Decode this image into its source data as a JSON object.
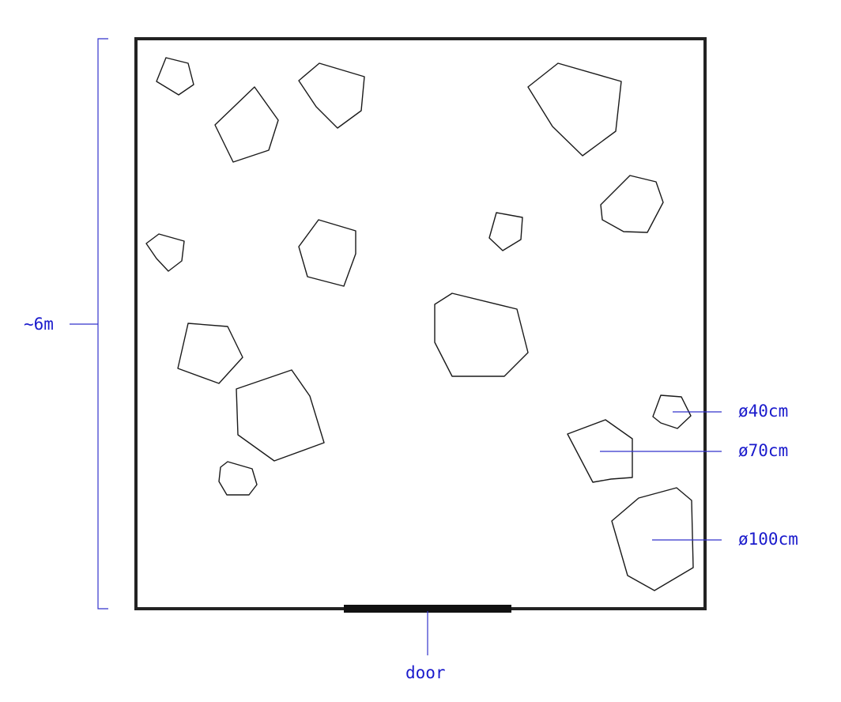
{
  "annotations": {
    "dimension_label": "~6m",
    "door_label": "door",
    "size_labels": [
      "ø40cm",
      "ø70cm",
      "ø100cm"
    ]
  },
  "colors": {
    "annotation": "#1a1acc",
    "wall": "#222222",
    "outline": "#1a1a1a",
    "background": "#ffffff"
  }
}
